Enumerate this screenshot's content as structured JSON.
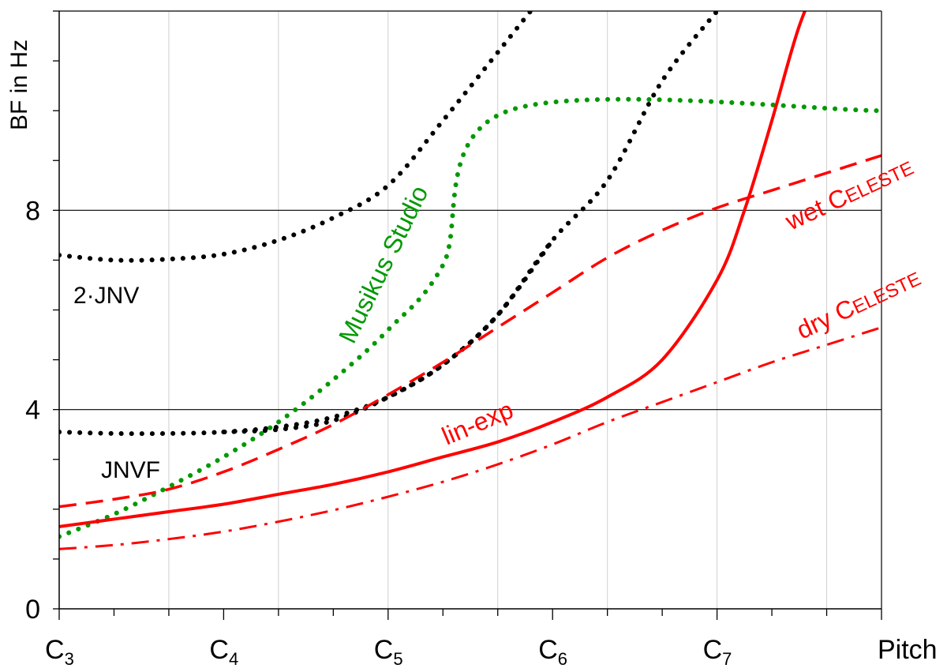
{
  "chart_data": {
    "type": "line",
    "xlabel": "Pitch",
    "ylabel": "BF in Hz",
    "x_ticks": [
      {
        "note": "C",
        "octave": "3",
        "x": 0
      },
      {
        "note": "C",
        "octave": "4",
        "x": 3
      },
      {
        "note": "C",
        "octave": "5",
        "x": 6
      },
      {
        "note": "C",
        "octave": "6",
        "x": 9
      },
      {
        "note": "C",
        "octave": "7",
        "x": 12
      }
    ],
    "xlim": [
      0,
      15
    ],
    "y_ticks": [
      "0",
      "4",
      "8"
    ],
    "ylim": [
      0,
      12
    ],
    "grid": "vertical light gray every 2 semitones, horizontal at 4 and 8",
    "series": [
      {
        "label_text": "JNVF",
        "style": "dotted",
        "color": "#000000",
        "x": [
          0,
          1,
          2,
          3,
          4,
          5,
          6,
          7,
          8,
          9
        ],
        "y": [
          3.55,
          3.52,
          3.52,
          3.55,
          3.65,
          3.85,
          4.25,
          4.9,
          5.9,
          7.4
        ]
      },
      {
        "label_text": "2·JNV",
        "style": "dotted",
        "color": "#000000",
        "x": [
          0,
          1,
          2,
          3,
          4,
          5,
          6,
          7,
          8.6
        ],
        "y": [
          7.1,
          7.0,
          7.02,
          7.12,
          7.4,
          7.85,
          8.5,
          9.8,
          12
        ]
      },
      {
        "label_text": "2·JNV",
        "style": "dotted",
        "color": "#000000",
        "x": [
          3,
          4,
          5,
          6,
          7,
          8,
          9,
          10,
          11,
          12
        ],
        "y": [
          3.55,
          3.6,
          3.78,
          4.25,
          4.9,
          5.9,
          7.4,
          8.6,
          10.6,
          12
        ]
      },
      {
        "label_text": "Musikus Studio",
        "style": "dotted",
        "color": "#009900",
        "x": [
          0,
          1,
          2,
          3,
          4,
          5,
          6,
          7,
          8.2,
          15
        ],
        "y": [
          1.45,
          1.9,
          2.45,
          3.05,
          3.75,
          4.6,
          5.6,
          6.9,
          10,
          10
        ]
      },
      {
        "label_text": "wet CELESTE",
        "style": "dashed",
        "color": "#ff0000",
        "x": [
          0,
          1,
          2,
          3,
          4,
          5,
          6,
          7,
          8,
          9,
          10,
          11,
          12,
          13,
          14,
          15
        ],
        "y": [
          2.05,
          2.2,
          2.4,
          2.75,
          3.2,
          3.7,
          4.3,
          4.95,
          5.65,
          6.35,
          7.05,
          7.6,
          8.05,
          8.4,
          8.75,
          9.1
        ]
      },
      {
        "label_text": "lin-exp",
        "style": "solid",
        "color": "#ff0000",
        "x": [
          0,
          1,
          2,
          3,
          4,
          5,
          6,
          7,
          8,
          9,
          10,
          11,
          12,
          12.5,
          13,
          13.5,
          14
        ],
        "y": [
          1.65,
          1.8,
          1.95,
          2.1,
          2.3,
          2.5,
          2.75,
          3.05,
          3.35,
          3.75,
          4.25,
          5.0,
          6.6,
          8.0,
          9.8,
          11.7,
          13
        ]
      },
      {
        "label_text": "dry CELESTE",
        "style": "dashdot",
        "color": "#ff0000",
        "x": [
          0,
          1,
          2,
          3,
          4,
          5,
          6,
          7,
          8,
          9,
          10,
          11,
          12,
          13,
          14,
          15
        ],
        "y": [
          1.2,
          1.28,
          1.4,
          1.55,
          1.75,
          1.98,
          2.25,
          2.55,
          2.9,
          3.3,
          3.75,
          4.15,
          4.55,
          4.95,
          5.3,
          5.65
        ]
      }
    ],
    "annotations": [
      {
        "id": "jnvf",
        "text": "JNVF",
        "color": "#000000"
      },
      {
        "id": "twojnv",
        "text": "2·JNV",
        "color": "#000000"
      },
      {
        "id": "musikus",
        "text": "Musikus Studio",
        "color": "#009900"
      },
      {
        "id": "linexp",
        "text": "lin-exp",
        "color": "#ff0000"
      },
      {
        "id": "wet",
        "text": "wet ",
        "text_sc": "CELESTE",
        "color": "#ff0000"
      },
      {
        "id": "dry",
        "text": "dry ",
        "text_sc": "CELESTE",
        "color": "#ff0000"
      }
    ],
    "colors": {
      "red": "#ff0000",
      "green": "#009900",
      "black": "#000000",
      "grid": "#d0d0d0"
    }
  }
}
